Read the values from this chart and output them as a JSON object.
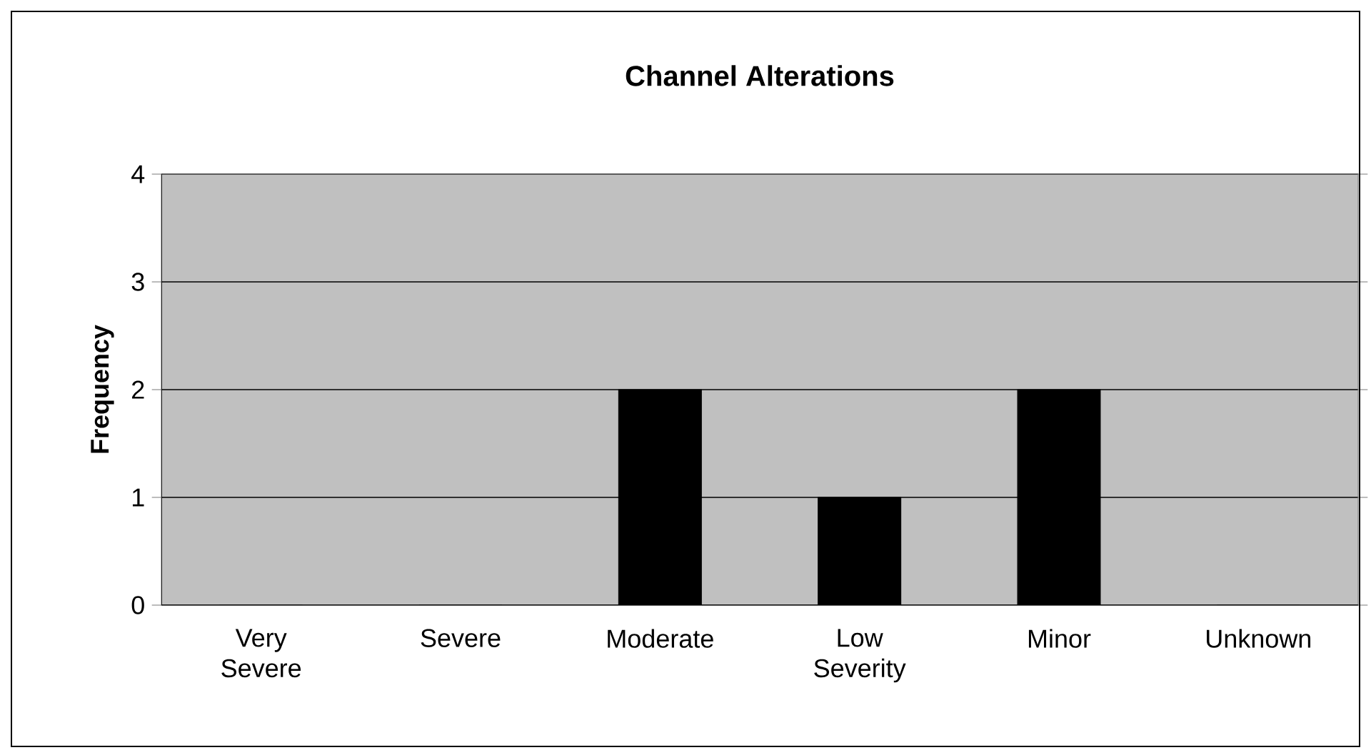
{
  "chart_data": {
    "type": "bar",
    "title": "Channel Alterations",
    "ylabel": "Frequency",
    "categories": [
      "Very Severe",
      "Severe",
      "Moderate",
      "Low Severity",
      "Minor",
      "Unknown"
    ],
    "values": [
      0,
      0,
      2,
      1,
      2,
      0
    ],
    "color": "#000000",
    "ylim": [
      0,
      4
    ],
    "yticks": [
      0,
      1,
      2,
      3,
      4
    ],
    "grid": "y"
  }
}
